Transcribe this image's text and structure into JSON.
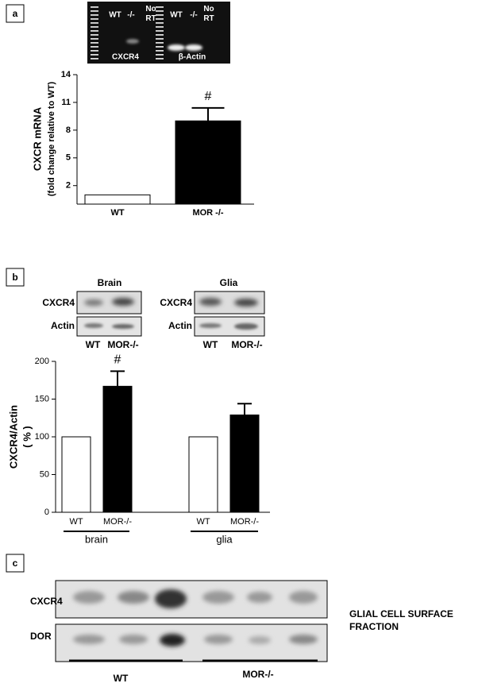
{
  "panel_labels": [
    "a",
    "b",
    "c"
  ],
  "gel_a": {
    "lanes": [
      "WT",
      "-/-",
      "No RT",
      "WT",
      "-/-",
      "No RT"
    ],
    "labels": [
      "CXCR4",
      "β-Actin"
    ]
  },
  "blots_b": [
    {
      "title": "Brain",
      "rows": [
        "CXCR4",
        "Actin"
      ],
      "lanes": [
        "WT",
        "MOR-/-"
      ]
    },
    {
      "title": "Glia",
      "rows": [
        "CXCR4",
        "Actin"
      ],
      "lanes": [
        "WT",
        "MOR-/-"
      ]
    }
  ],
  "blot_c": {
    "rows": [
      "CXCR4",
      "DOR"
    ],
    "note": "GLIAL CELL SURFACE FRACTION",
    "groups": [
      "WT",
      "MOR-/-"
    ]
  },
  "chart_data": [
    {
      "type": "bar",
      "ylabel": "CXCR mRNA",
      "ylabel_note": "(fold change relative to WT)",
      "categories": [
        "WT",
        "MOR -/-"
      ],
      "values": [
        1,
        9
      ],
      "errors": [
        null,
        1.4
      ],
      "annotations": [
        null,
        "#"
      ],
      "colors": [
        "#ffffff",
        "#000000"
      ],
      "ylim": [
        0,
        14
      ],
      "yticks": [
        2,
        5,
        8,
        11,
        14
      ]
    },
    {
      "type": "bar",
      "ylabel": "CXCR4/Actin",
      "ylabel_note": "( % )",
      "categories": [
        "WT",
        "MOR-/-",
        "WT",
        "MOR-/-"
      ],
      "groups": [
        "brain",
        "glia"
      ],
      "values": [
        100,
        167,
        100,
        129
      ],
      "errors": [
        null,
        20,
        null,
        15
      ],
      "annotations": [
        null,
        "#",
        null,
        null
      ],
      "colors": [
        "#ffffff",
        "#000000",
        "#ffffff",
        "#000000"
      ],
      "ylim": [
        0,
        200
      ],
      "yticks": [
        0,
        50,
        100,
        150,
        200
      ]
    }
  ]
}
